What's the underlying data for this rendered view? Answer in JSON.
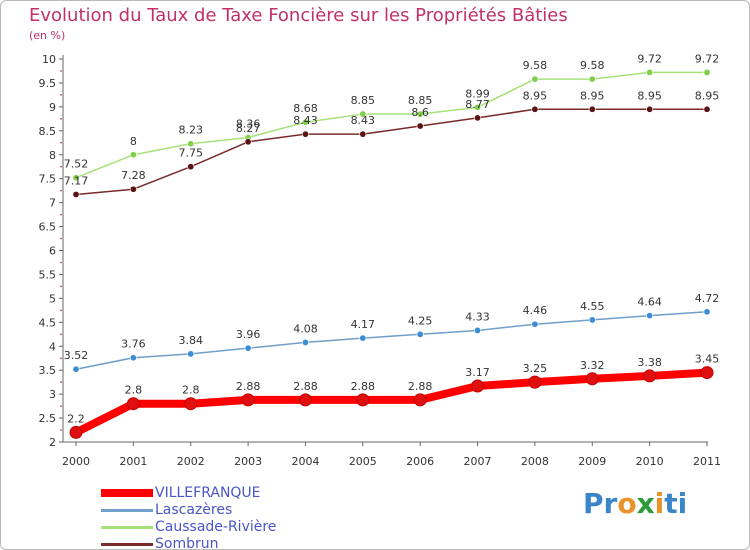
{
  "header": {
    "title": "Evolution du Taux de Taxe Foncière sur les Propriétés Bâties",
    "subtitle": "(en %)"
  },
  "chart_data": {
    "type": "line",
    "title": "Evolution du Taux de Taxe Foncière sur les Propriétés Bâties",
    "ylabel": "(en %)",
    "xlabel": "",
    "categories": [
      "2000",
      "2001",
      "2002",
      "2003",
      "2004",
      "2005",
      "2006",
      "2007",
      "2008",
      "2009",
      "2010",
      "2011"
    ],
    "ylim": [
      2,
      10
    ],
    "yticks": [
      "2",
      "2.5",
      "3",
      "3.5",
      "4",
      "4.5",
      "5",
      "5.5",
      "6",
      "6.5",
      "7",
      "7.5",
      "8",
      "8.5",
      "9",
      "9.5",
      "10"
    ],
    "grid": false,
    "legend_position": "bottom-left",
    "series": [
      {
        "name": "VILLEFRANQUE",
        "color": "#ff0000",
        "marker": "#e01010",
        "width": 8,
        "values": [
          2.2,
          2.8,
          2.8,
          2.88,
          2.88,
          2.88,
          2.88,
          3.17,
          3.25,
          3.32,
          3.38,
          3.45
        ],
        "labels": [
          "2.2",
          "2.8",
          "2.8",
          "2.88",
          "2.88",
          "2.88",
          "2.88",
          "3.17",
          "3.25",
          "3.32",
          "3.38",
          "3.45"
        ]
      },
      {
        "name": "Lascazères",
        "color": "#6f9fca",
        "marker": "#3d8cd6",
        "width": 1.5,
        "values": [
          3.52,
          3.76,
          3.84,
          3.96,
          4.08,
          4.17,
          4.25,
          4.33,
          4.46,
          4.55,
          4.64,
          4.72
        ],
        "labels": [
          "3.52",
          "3.76",
          "3.84",
          "3.96",
          "4.08",
          "4.17",
          "4.25",
          "4.33",
          "4.46",
          "4.55",
          "4.64",
          "4.72"
        ]
      },
      {
        "name": "Caussade-Rivière",
        "color": "#a6e27a",
        "marker": "#7fd048",
        "width": 1.5,
        "values": [
          7.52,
          8.0,
          8.23,
          8.36,
          8.68,
          8.85,
          8.85,
          8.99,
          9.58,
          9.58,
          9.72,
          9.72
        ],
        "labels": [
          "7.52",
          "8",
          "8.23",
          "8.36",
          "8.68",
          "8.85",
          "8.85",
          "8.99",
          "9.58",
          "9.58",
          "9.72",
          "9.72"
        ]
      },
      {
        "name": "Sombrun",
        "color": "#7a2a2a",
        "marker": "#5a1414",
        "width": 1.5,
        "values": [
          7.17,
          7.28,
          7.75,
          8.27,
          8.43,
          8.43,
          8.6,
          8.77,
          8.95,
          8.95,
          8.95,
          8.95
        ],
        "labels": [
          "7.17",
          "7.28",
          "7.75",
          "8.27",
          "8.43",
          "8.43",
          "8.6",
          "8.77",
          "8.95",
          "8.95",
          "8.95",
          "8.95"
        ]
      }
    ]
  },
  "logo": {
    "letters": [
      "P",
      "r",
      "o",
      "x",
      "i",
      "t",
      "i"
    ],
    "colors": [
      "#3b86c8",
      "#3b86c8",
      "#e8922a",
      "#2e9b3a",
      "#e8922a",
      "#3b86c8",
      "#3b86c8"
    ]
  }
}
